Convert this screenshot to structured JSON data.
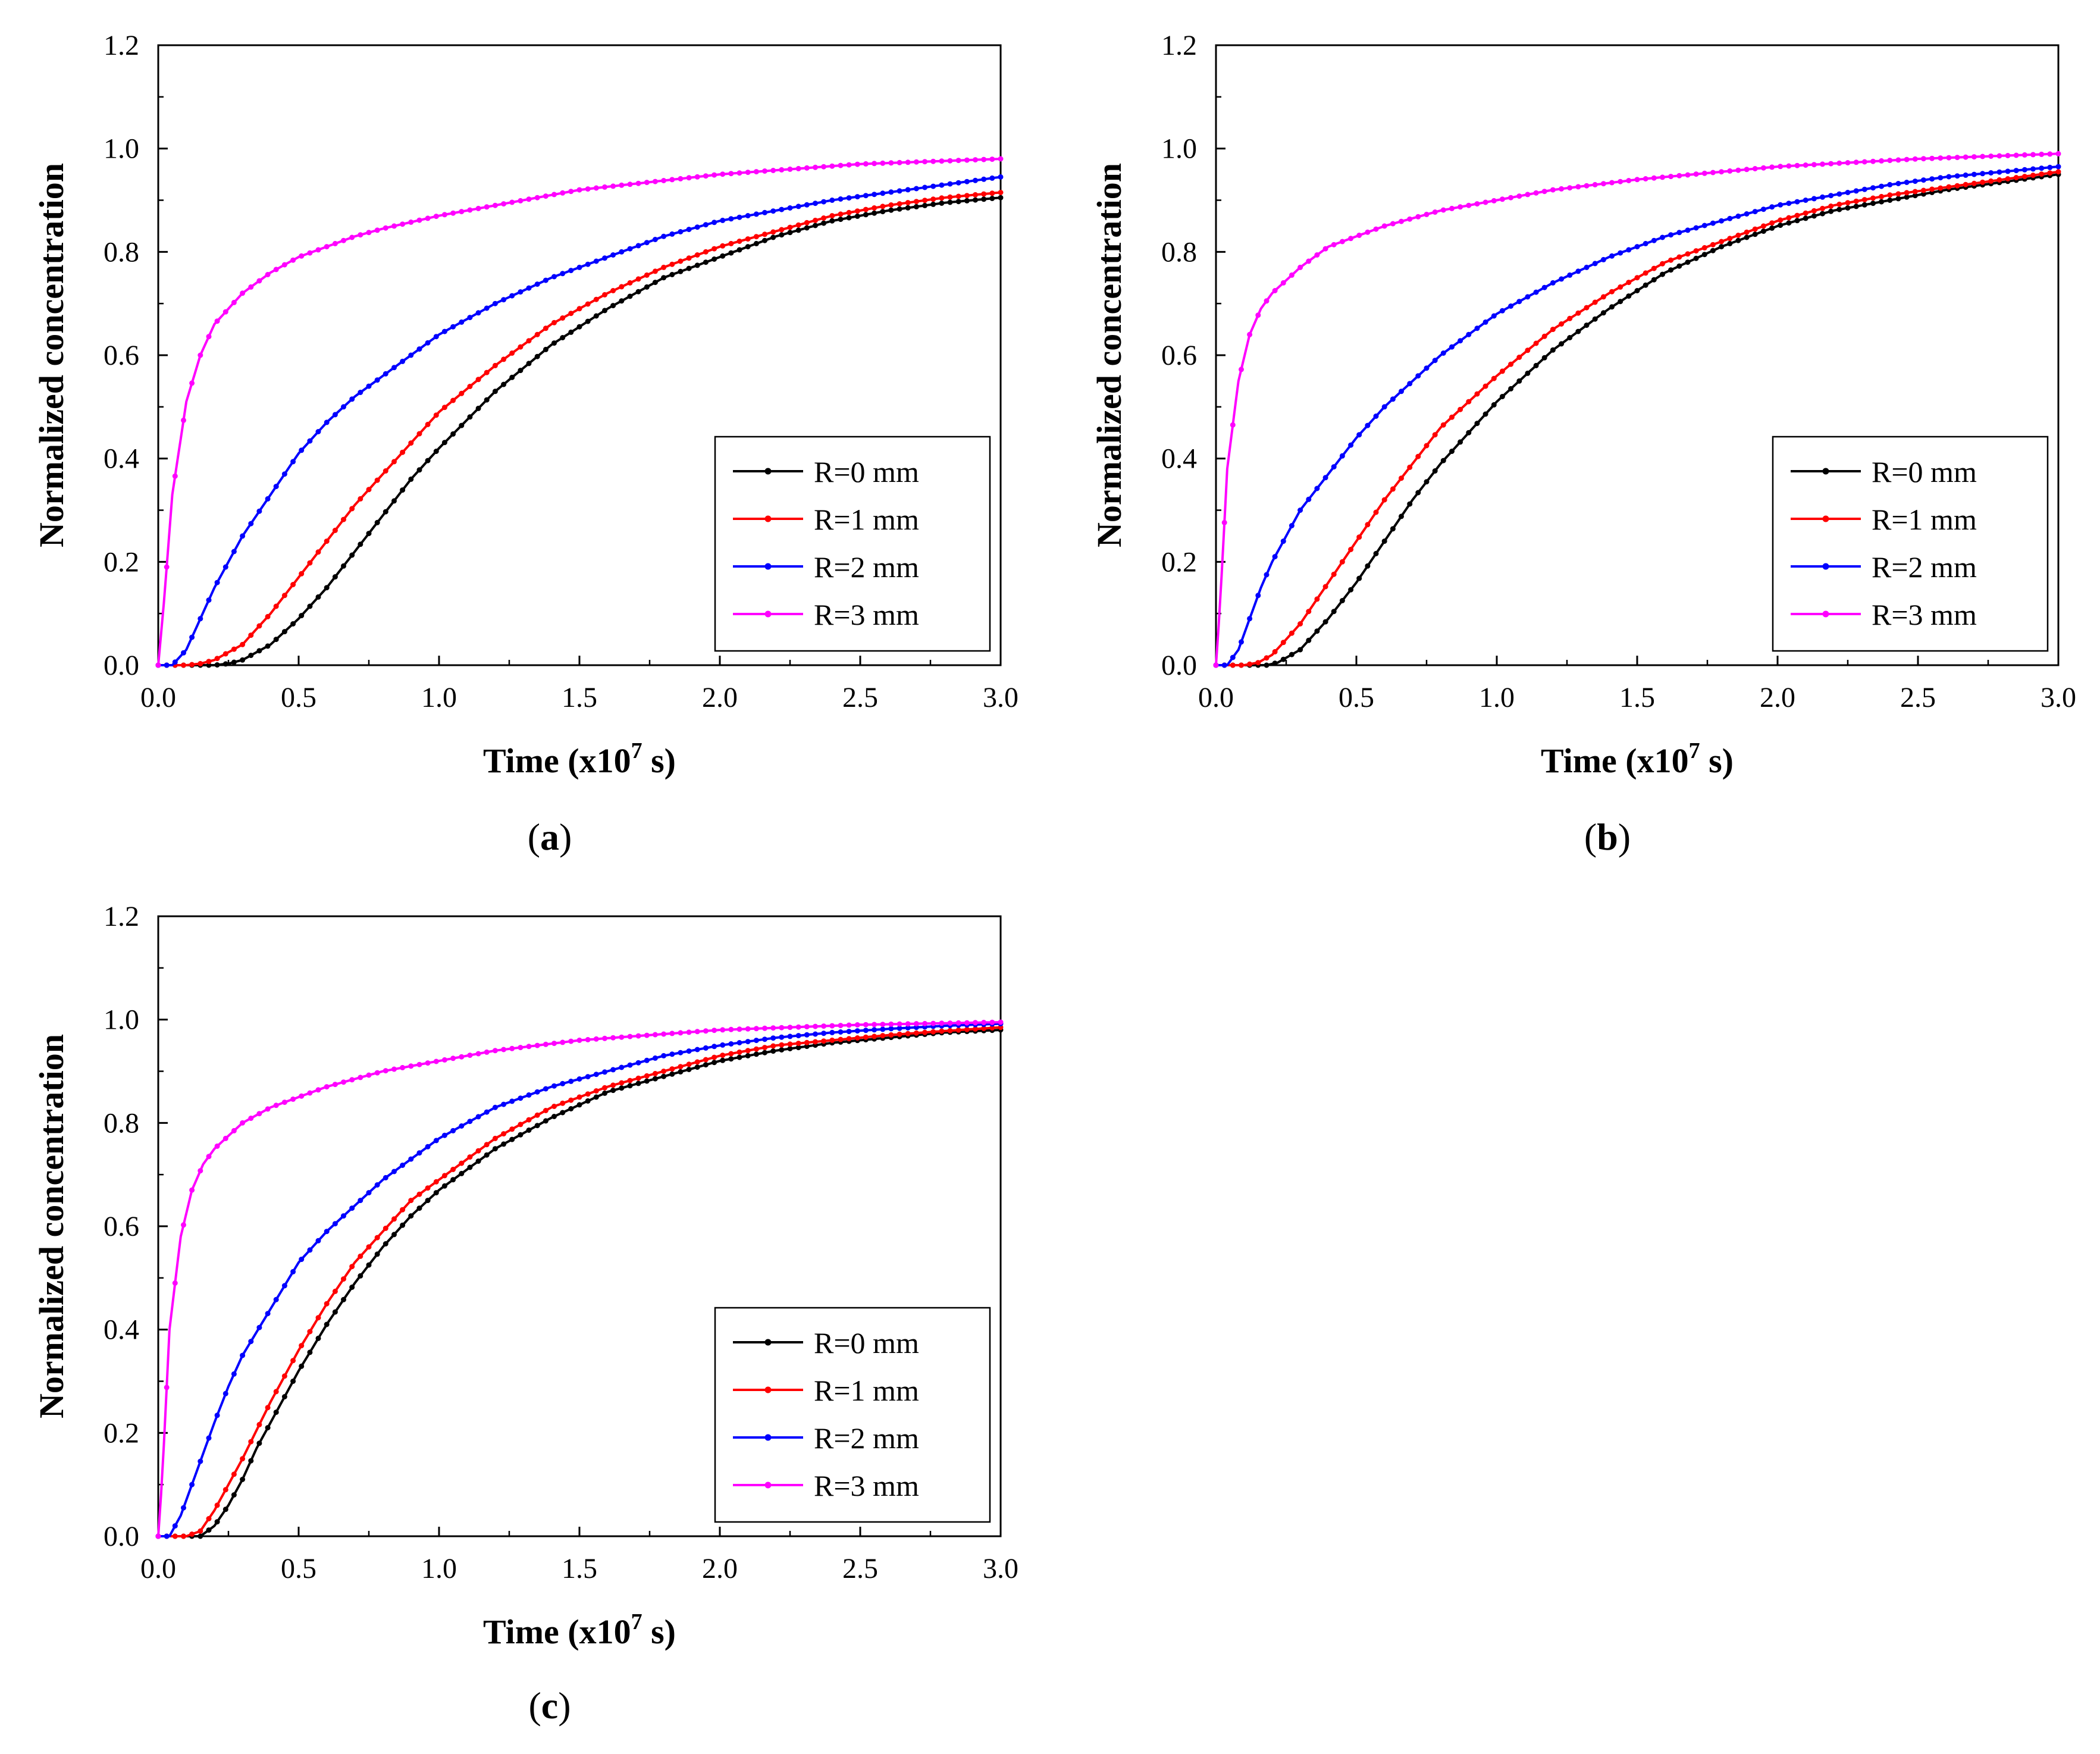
{
  "chart_data": [
    {
      "id": "a",
      "type": "line",
      "caption": {
        "open": "(",
        "letter": "a",
        "close": ")"
      },
      "xlabel_main": "Time (x10",
      "xlabel_sup": "7",
      "xlabel_tail": " s)",
      "ylabel": "Normalized concentration",
      "xlim": [
        0,
        3.0
      ],
      "ylim": [
        0,
        1.2
      ],
      "xticks": [
        "0.0",
        "0.5",
        "1.0",
        "1.5",
        "2.0",
        "2.5",
        "3.0"
      ],
      "yticks": [
        "0.0",
        "0.2",
        "0.4",
        "0.6",
        "0.8",
        "1.0",
        "1.2"
      ],
      "legend_position": "center-right",
      "series": [
        {
          "name": "R=0 mm",
          "color": "#000000",
          "x": [
            0,
            0.2,
            0.25,
            0.3,
            0.4,
            0.5,
            0.6,
            0.7,
            0.8,
            0.9,
            1.0,
            1.2,
            1.4,
            1.6,
            1.8,
            2.0,
            2.2,
            2.4,
            2.6,
            2.8,
            3.0
          ],
          "y": [
            0,
            0,
            0.003,
            0.01,
            0.04,
            0.09,
            0.15,
            0.22,
            0.29,
            0.36,
            0.42,
            0.53,
            0.62,
            0.69,
            0.75,
            0.79,
            0.83,
            0.86,
            0.88,
            0.895,
            0.905
          ]
        },
        {
          "name": "R=1 mm",
          "color": "#ff0000",
          "x": [
            0,
            0.1,
            0.15,
            0.2,
            0.3,
            0.4,
            0.5,
            0.6,
            0.7,
            0.8,
            0.9,
            1.0,
            1.2,
            1.4,
            1.6,
            1.8,
            2.0,
            2.2,
            2.4,
            2.6,
            2.8,
            3.0
          ],
          "y": [
            0,
            0,
            0.003,
            0.01,
            0.04,
            0.1,
            0.17,
            0.24,
            0.31,
            0.37,
            0.43,
            0.49,
            0.58,
            0.66,
            0.72,
            0.77,
            0.81,
            0.84,
            0.87,
            0.89,
            0.905,
            0.915
          ]
        },
        {
          "name": "R=2 mm",
          "color": "#0000ff",
          "x": [
            0,
            0.05,
            0.1,
            0.15,
            0.2,
            0.25,
            0.3,
            0.4,
            0.5,
            0.6,
            0.7,
            0.8,
            0.9,
            1.0,
            1.2,
            1.4,
            1.6,
            1.8,
            2.0,
            2.2,
            2.4,
            2.6,
            2.8,
            3.0
          ],
          "y": [
            0,
            0,
            0.03,
            0.09,
            0.15,
            0.2,
            0.25,
            0.33,
            0.41,
            0.47,
            0.52,
            0.56,
            0.6,
            0.64,
            0.7,
            0.75,
            0.79,
            0.83,
            0.86,
            0.88,
            0.9,
            0.915,
            0.93,
            0.945
          ]
        },
        {
          "name": "R=3 mm",
          "color": "#ff00ff",
          "x": [
            0,
            0.02,
            0.05,
            0.1,
            0.15,
            0.2,
            0.3,
            0.4,
            0.5,
            0.6,
            0.7,
            0.8,
            1.0,
            1.2,
            1.5,
            2.0,
            2.5,
            3.0
          ],
          "y": [
            0,
            0.12,
            0.33,
            0.51,
            0.6,
            0.66,
            0.72,
            0.76,
            0.79,
            0.81,
            0.83,
            0.845,
            0.87,
            0.89,
            0.92,
            0.95,
            0.97,
            0.98
          ]
        }
      ]
    },
    {
      "id": "b",
      "type": "line",
      "caption": {
        "open": "(",
        "letter": "b",
        "close": ")"
      },
      "xlabel_main": "Time (x10",
      "xlabel_sup": "7",
      "xlabel_tail": " s)",
      "ylabel": "Normalized concentration",
      "xlim": [
        0,
        3.0
      ],
      "ylim": [
        0,
        1.2
      ],
      "xticks": [
        "0.0",
        "0.5",
        "1.0",
        "1.5",
        "2.0",
        "2.5",
        "3.0"
      ],
      "yticks": [
        "0.0",
        "0.2",
        "0.4",
        "0.6",
        "0.8",
        "1.0",
        "1.2"
      ],
      "legend_position": "center-right",
      "series": [
        {
          "name": "R=0 mm",
          "color": "#000000",
          "x": [
            0,
            0.18,
            0.22,
            0.3,
            0.4,
            0.5,
            0.6,
            0.7,
            0.8,
            0.9,
            1.0,
            1.2,
            1.4,
            1.6,
            1.8,
            2.0,
            2.2,
            2.4,
            2.6,
            2.8,
            3.0
          ],
          "y": [
            0,
            0,
            0.005,
            0.03,
            0.09,
            0.16,
            0.24,
            0.32,
            0.39,
            0.45,
            0.51,
            0.61,
            0.69,
            0.76,
            0.81,
            0.85,
            0.88,
            0.9,
            0.92,
            0.935,
            0.95
          ]
        },
        {
          "name": "R=1 mm",
          "color": "#ff0000",
          "x": [
            0,
            0.1,
            0.15,
            0.2,
            0.3,
            0.4,
            0.5,
            0.6,
            0.7,
            0.8,
            0.9,
            1.0,
            1.2,
            1.4,
            1.6,
            1.8,
            2.0,
            2.2,
            2.4,
            2.6,
            2.8,
            3.0
          ],
          "y": [
            0,
            0,
            0.005,
            0.02,
            0.08,
            0.16,
            0.24,
            0.32,
            0.39,
            0.46,
            0.51,
            0.56,
            0.65,
            0.72,
            0.78,
            0.82,
            0.86,
            0.89,
            0.91,
            0.925,
            0.94,
            0.955
          ]
        },
        {
          "name": "R=2 mm",
          "color": "#0000ff",
          "x": [
            0,
            0.04,
            0.08,
            0.12,
            0.16,
            0.2,
            0.25,
            0.3,
            0.4,
            0.5,
            0.6,
            0.7,
            0.8,
            0.9,
            1.0,
            1.2,
            1.4,
            1.6,
            1.8,
            2.0,
            2.2,
            2.4,
            2.6,
            2.8,
            3.0
          ],
          "y": [
            0,
            0,
            0.03,
            0.09,
            0.15,
            0.2,
            0.25,
            0.3,
            0.37,
            0.44,
            0.5,
            0.55,
            0.6,
            0.64,
            0.68,
            0.74,
            0.79,
            0.83,
            0.86,
            0.89,
            0.91,
            0.93,
            0.945,
            0.955,
            0.965
          ]
        },
        {
          "name": "R=3 mm",
          "color": "#ff00ff",
          "x": [
            0,
            0.015,
            0.04,
            0.08,
            0.12,
            0.16,
            0.2,
            0.3,
            0.4,
            0.5,
            0.6,
            0.7,
            0.8,
            1.0,
            1.2,
            1.5,
            2.0,
            2.5,
            3.0
          ],
          "y": [
            0,
            0.12,
            0.38,
            0.55,
            0.64,
            0.69,
            0.72,
            0.77,
            0.81,
            0.83,
            0.85,
            0.865,
            0.88,
            0.9,
            0.92,
            0.94,
            0.965,
            0.98,
            0.99
          ]
        }
      ]
    },
    {
      "id": "c",
      "type": "line",
      "caption": {
        "open": "(",
        "letter": "c",
        "close": ")"
      },
      "xlabel_main": "Time (x10",
      "xlabel_sup": "7",
      "xlabel_tail": " s)",
      "ylabel": "Normalized concentration",
      "xlim": [
        0,
        3.0
      ],
      "ylim": [
        0,
        1.2
      ],
      "xticks": [
        "0.0",
        "0.5",
        "1.0",
        "1.5",
        "2.0",
        "2.5",
        "3.0"
      ],
      "yticks": [
        "0.0",
        "0.2",
        "0.4",
        "0.6",
        "0.8",
        "1.0",
        "1.2"
      ],
      "legend_position": "center-right",
      "series": [
        {
          "name": "R=0 mm",
          "color": "#000000",
          "x": [
            0,
            0.15,
            0.2,
            0.25,
            0.3,
            0.35,
            0.4,
            0.5,
            0.6,
            0.7,
            0.8,
            0.9,
            1.0,
            1.2,
            1.4,
            1.6,
            1.8,
            2.0,
            2.2,
            2.4,
            2.6,
            2.8,
            3.0
          ],
          "y": [
            0,
            0,
            0.02,
            0.06,
            0.11,
            0.17,
            0.22,
            0.32,
            0.41,
            0.49,
            0.56,
            0.62,
            0.67,
            0.75,
            0.81,
            0.86,
            0.89,
            0.92,
            0.94,
            0.955,
            0.965,
            0.975,
            0.98
          ]
        },
        {
          "name": "R=1 mm",
          "color": "#ff0000",
          "x": [
            0,
            0.1,
            0.15,
            0.2,
            0.25,
            0.3,
            0.4,
            0.5,
            0.6,
            0.7,
            0.8,
            0.9,
            1.0,
            1.2,
            1.4,
            1.6,
            1.8,
            2.0,
            2.2,
            2.4,
            2.6,
            2.8,
            3.0
          ],
          "y": [
            0,
            0,
            0.01,
            0.05,
            0.1,
            0.15,
            0.26,
            0.36,
            0.45,
            0.53,
            0.59,
            0.65,
            0.69,
            0.77,
            0.83,
            0.87,
            0.9,
            0.93,
            0.95,
            0.96,
            0.97,
            0.978,
            0.985
          ]
        },
        {
          "name": "R=2 mm",
          "color": "#0000ff",
          "x": [
            0,
            0.04,
            0.08,
            0.12,
            0.16,
            0.2,
            0.25,
            0.3,
            0.4,
            0.5,
            0.6,
            0.7,
            0.8,
            0.9,
            1.0,
            1.2,
            1.4,
            1.6,
            1.8,
            2.0,
            2.2,
            2.4,
            2.6,
            2.8,
            3.0
          ],
          "y": [
            0,
            0,
            0.04,
            0.1,
            0.16,
            0.22,
            0.29,
            0.35,
            0.44,
            0.53,
            0.59,
            0.64,
            0.69,
            0.73,
            0.77,
            0.83,
            0.87,
            0.9,
            0.93,
            0.95,
            0.965,
            0.975,
            0.982,
            0.988,
            0.992
          ]
        },
        {
          "name": "R=3 mm",
          "color": "#ff00ff",
          "x": [
            0,
            0.015,
            0.04,
            0.08,
            0.12,
            0.16,
            0.2,
            0.3,
            0.4,
            0.5,
            0.6,
            0.8,
            1.0,
            1.2,
            1.5,
            2.0,
            2.5,
            3.0
          ],
          "y": [
            0,
            0.12,
            0.4,
            0.58,
            0.67,
            0.72,
            0.75,
            0.8,
            0.83,
            0.85,
            0.87,
            0.9,
            0.92,
            0.94,
            0.96,
            0.98,
            0.99,
            0.995
          ]
        }
      ]
    }
  ]
}
